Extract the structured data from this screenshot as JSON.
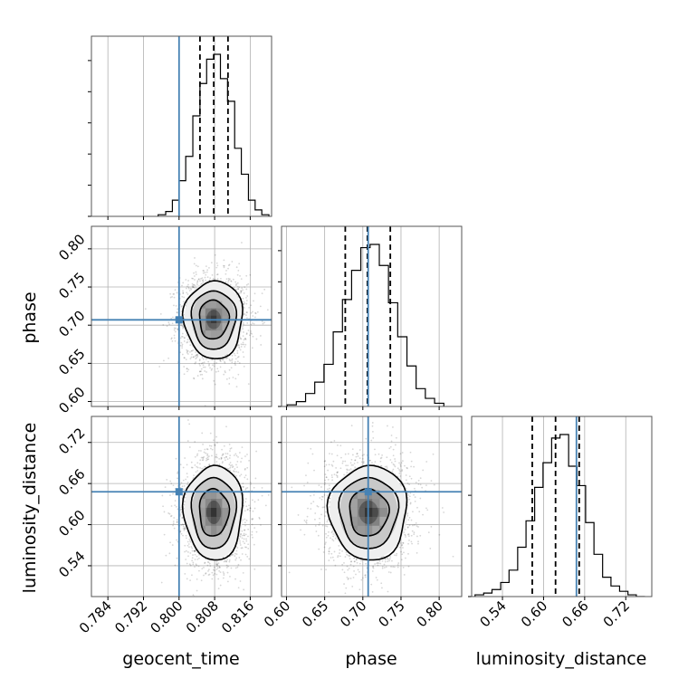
{
  "chart_data": {
    "type": "corner",
    "parameters": [
      "geocent_time",
      "phase",
      "luminosity_distance"
    ],
    "labels": [
      "geocent_time",
      "phase",
      "luminosity_distance"
    ],
    "truths": [
      0.8,
      0.707,
      0.648
    ],
    "truth_color": "#4682b4",
    "ranges": [
      [
        0.7803,
        0.8208
      ],
      [
        0.5935,
        0.8295
      ],
      [
        0.495,
        0.758
      ]
    ],
    "ticks": {
      "geocent_time": [
        "0.784",
        "0.792",
        "0.800",
        "0.808",
        "0.816"
      ],
      "phase": [
        "0.60",
        "0.65",
        "0.70",
        "0.75",
        "0.80"
      ],
      "luminosity_distance": [
        "0.54",
        "0.60",
        "0.66",
        "0.72"
      ]
    },
    "tick_values": {
      "geocent_time": [
        0.784,
        0.792,
        0.8,
        0.808,
        0.816
      ],
      "phase": [
        0.6,
        0.65,
        0.7,
        0.75,
        0.8
      ],
      "luminosity_distance": [
        0.54,
        0.6,
        0.66,
        0.72
      ]
    },
    "posterior": {
      "means": [
        0.8078,
        0.7075,
        0.618
      ],
      "sigmas": [
        0.0033,
        0.0255,
        0.0345
      ],
      "quantiles": [
        [
          0.8047,
          0.8078,
          0.811
        ],
        [
          0.677,
          0.706,
          0.736
        ],
        [
          0.5835,
          0.6175,
          0.652
        ]
      ]
    },
    "histograms": [
      {
        "parameter": "geocent_time",
        "bin_edges": [
          0.7953,
          0.797,
          0.7985,
          0.8,
          0.8015,
          0.8031,
          0.8047,
          0.8062,
          0.8078,
          0.8093,
          0.8109,
          0.8125,
          0.814,
          0.8156,
          0.8171,
          0.8186,
          0.8202
        ],
        "values": [
          0.01,
          0.03,
          0.1,
          0.22,
          0.37,
          0.62,
          0.82,
          0.97,
          1.0,
          0.85,
          0.71,
          0.42,
          0.26,
          0.1,
          0.04,
          0.01
        ]
      },
      {
        "parameter": "phase",
        "bin_edges": [
          0.6008,
          0.6129,
          0.625,
          0.637,
          0.6491,
          0.6612,
          0.6733,
          0.6853,
          0.6974,
          0.7095,
          0.7216,
          0.7336,
          0.7457,
          0.7578,
          0.7698,
          0.7819,
          0.794,
          0.8061
        ],
        "values": [
          0.01,
          0.03,
          0.08,
          0.15,
          0.26,
          0.46,
          0.66,
          0.84,
          0.98,
          1.0,
          0.87,
          0.64,
          0.43,
          0.25,
          0.11,
          0.05,
          0.02
        ]
      },
      {
        "parameter": "luminosity_distance",
        "bin_edges": [
          0.5,
          0.5126,
          0.5247,
          0.5374,
          0.5496,
          0.5622,
          0.5744,
          0.587,
          0.5992,
          0.6118,
          0.624,
          0.6366,
          0.6488,
          0.6614,
          0.6736,
          0.6862,
          0.6984,
          0.711,
          0.7232,
          0.7354,
          0.748
        ],
        "values": [
          0.01,
          0.02,
          0.04,
          0.08,
          0.15,
          0.28,
          0.43,
          0.62,
          0.76,
          0.9,
          0.92,
          0.74,
          0.63,
          0.42,
          0.24,
          0.11,
          0.06,
          0.03,
          0.01,
          0.0
        ]
      }
    ],
    "grid": true
  }
}
